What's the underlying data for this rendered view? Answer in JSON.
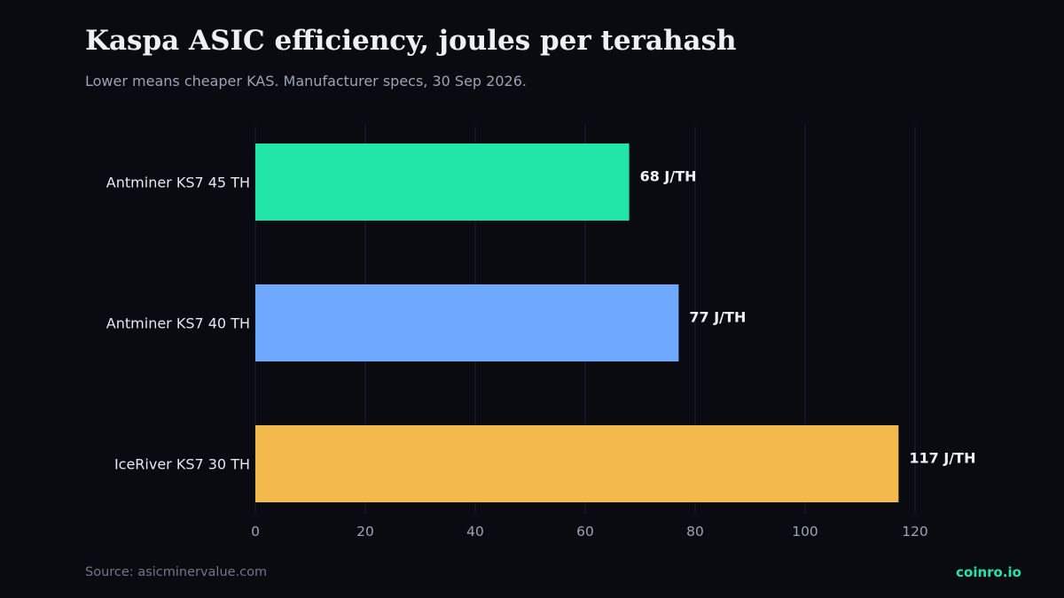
{
  "title": "Kaspa ASIC efficiency, joules per terahash",
  "subtitle": "Lower means cheaper KAS. Manufacturer specs, 30 Sep 2026.",
  "source": "Source: asicminervalue.com",
  "brand": "coinro.io",
  "colors": {
    "background": "#0a0b10",
    "grid": "#1c2233",
    "tick_text": "#9aa3b5",
    "category_text": "#e6e9f0",
    "value_text": "#eef0f6",
    "brand": "#22e6a8"
  },
  "chart_data": {
    "type": "bar",
    "orientation": "horizontal",
    "categories": [
      "Antminer KS7 45 TH",
      "Antminer KS7 40 TH",
      "IceRiver KS7 30 TH"
    ],
    "values": [
      68,
      77,
      117
    ],
    "value_labels": [
      "68 J/TH",
      "77 J/TH",
      "117 J/TH"
    ],
    "bar_colors": [
      "#22e6a8",
      "#6ea8ff",
      "#f4b94c"
    ],
    "xticks": [
      "0",
      "20",
      "40",
      "60",
      "80",
      "100",
      "120"
    ],
    "xlim": [
      0,
      120
    ],
    "grid": true,
    "xlabel": "",
    "ylabel": ""
  }
}
